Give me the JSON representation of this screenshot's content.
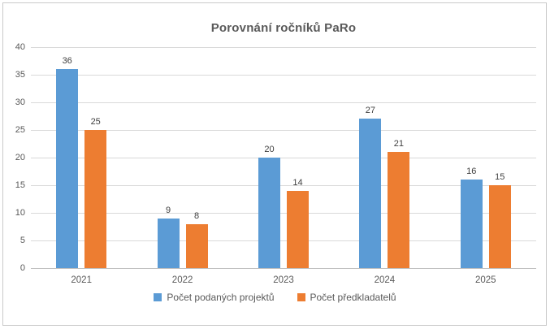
{
  "chart": {
    "colors": {
      "series1": "#5b9bd5",
      "series2": "#ed7d31",
      "gridline": "#d9d9d9",
      "axis_line": "#bfbfbf",
      "title_text": "#595959",
      "axis_text": "#595959",
      "data_label_text": "#404040",
      "frame_border": "#c9c9c9",
      "background": "#ffffff"
    }
  },
  "chart_data": {
    "type": "bar",
    "title": "Porovnání ročníků PaRo",
    "categories": [
      "2021",
      "2022",
      "2023",
      "2024",
      "2025"
    ],
    "series": [
      {
        "name": "Počet podaných projektů",
        "color": "#5b9bd5",
        "values": [
          36,
          9,
          20,
          27,
          16
        ]
      },
      {
        "name": "Počet předkladatelů",
        "color": "#ed7d31",
        "values": [
          25,
          8,
          14,
          21,
          15
        ]
      }
    ],
    "xlabel": "",
    "ylabel": "",
    "ylim": [
      0,
      40
    ],
    "ytick_step": 5,
    "yticks": [
      0,
      5,
      10,
      15,
      20,
      25,
      30,
      35,
      40
    ],
    "grid": true,
    "data_labels": true,
    "legend_position": "bottom"
  }
}
